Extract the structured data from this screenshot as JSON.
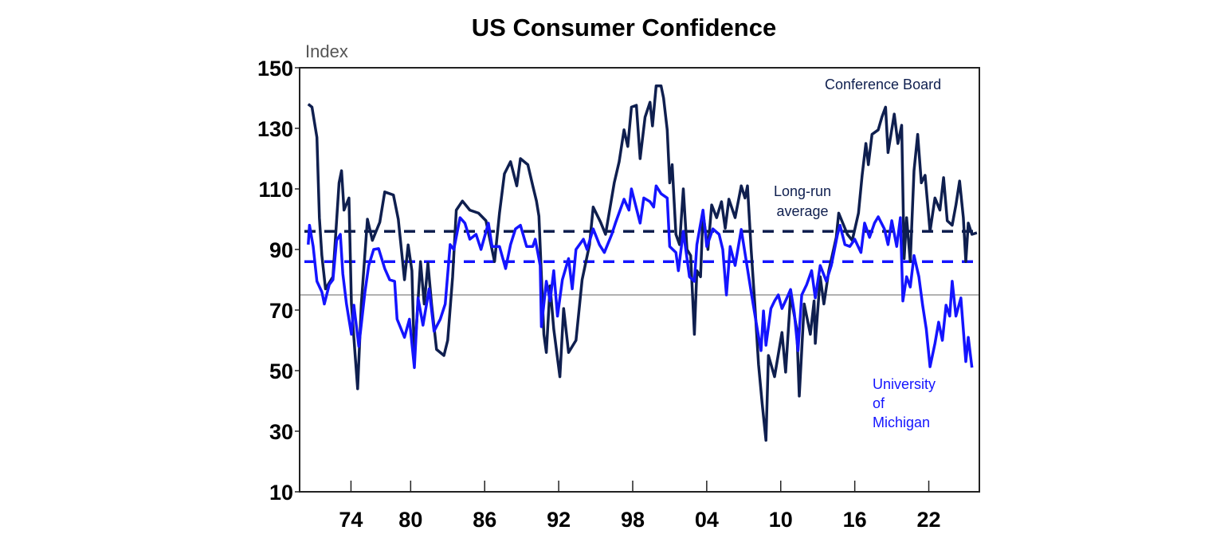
{
  "chart_data": {
    "type": "line",
    "title": "US Consumer Confidence",
    "ylabel": "Index",
    "ylim": [
      10,
      150
    ],
    "xlim": [
      1971,
      2026.1
    ],
    "yticks": [
      10,
      30,
      50,
      70,
      90,
      110,
      130,
      150
    ],
    "xticks": [
      {
        "year": 1974,
        "label": "74"
      },
      {
        "year": 1980,
        "label": "80"
      },
      {
        "year": 1986,
        "label": "86"
      },
      {
        "year": 1992,
        "label": "92"
      },
      {
        "year": 1998,
        "label": "98"
      },
      {
        "year": 2004,
        "label": "04"
      },
      {
        "year": 2010,
        "label": "10"
      },
      {
        "year": 2016,
        "label": "16"
      },
      {
        "year": 2022,
        "label": "22"
      }
    ],
    "grid": false,
    "colors": {
      "conference_board": "#0f1f4f",
      "michigan": "#1414ff",
      "reference_line": "#999999"
    },
    "series": [
      {
        "name": "Conference Board",
        "label_lines": [
          "Conference Board"
        ],
        "long_run_average": 96,
        "points": [
          [
            1971.7,
            138
          ],
          [
            1972.0,
            137
          ],
          [
            1972.4,
            127
          ],
          [
            1972.6,
            100.5
          ],
          [
            1972.8,
            88
          ],
          [
            1973.1,
            77
          ],
          [
            1973.7,
            81
          ],
          [
            1974.2,
            112
          ],
          [
            1974.4,
            116
          ],
          [
            1974.6,
            103
          ],
          [
            1975.0,
            107
          ],
          [
            1975.2,
            72
          ],
          [
            1975.5,
            55
          ],
          [
            1975.7,
            44
          ],
          [
            1976.0,
            72
          ],
          [
            1976.5,
            100
          ],
          [
            1976.9,
            93
          ],
          [
            1977.5,
            99
          ],
          [
            1977.9,
            109
          ],
          [
            1978.6,
            108
          ],
          [
            1979.0,
            100
          ],
          [
            1979.5,
            80
          ],
          [
            1979.8,
            91.5
          ],
          [
            1980.1,
            83
          ],
          [
            1980.3,
            54
          ],
          [
            1980.8,
            86
          ],
          [
            1981.1,
            72
          ],
          [
            1981.4,
            85.5
          ],
          [
            1981.7,
            72
          ],
          [
            1982.1,
            57
          ],
          [
            1982.7,
            55
          ],
          [
            1983.0,
            60
          ],
          [
            1983.4,
            81
          ],
          [
            1983.7,
            103
          ],
          [
            1984.2,
            106
          ],
          [
            1984.8,
            103
          ],
          [
            1985.5,
            102
          ],
          [
            1986.1,
            99.5
          ],
          [
            1986.8,
            86
          ],
          [
            1987.2,
            102
          ],
          [
            1987.6,
            115
          ],
          [
            1988.1,
            119
          ],
          [
            1988.6,
            111
          ],
          [
            1988.9,
            120
          ],
          [
            1989.5,
            118
          ],
          [
            1989.9,
            111
          ],
          [
            1990.2,
            106
          ],
          [
            1990.4,
            101
          ],
          [
            1990.8,
            62
          ],
          [
            1991.0,
            56
          ],
          [
            1991.3,
            78
          ],
          [
            1991.6,
            63.7
          ],
          [
            1992.1,
            48
          ],
          [
            1992.4,
            70.5
          ],
          [
            1992.8,
            56
          ],
          [
            1993.4,
            60
          ],
          [
            1993.9,
            80
          ],
          [
            1994.5,
            91.6
          ],
          [
            1994.8,
            104
          ],
          [
            1995.4,
            99
          ],
          [
            1995.8,
            95
          ],
          [
            1996.5,
            112
          ],
          [
            1996.9,
            119
          ],
          [
            1997.3,
            129.5
          ],
          [
            1997.6,
            124
          ],
          [
            1997.9,
            137
          ],
          [
            1998.3,
            137.6
          ],
          [
            1998.6,
            120
          ],
          [
            1999.0,
            133.7
          ],
          [
            1999.4,
            138.6
          ],
          [
            1999.6,
            130.8
          ],
          [
            1999.9,
            144
          ],
          [
            2000.3,
            144
          ],
          [
            2000.5,
            140
          ],
          [
            2000.8,
            129.5
          ],
          [
            2001.0,
            112
          ],
          [
            2001.2,
            118
          ],
          [
            2001.5,
            95
          ],
          [
            2001.8,
            91.6
          ],
          [
            2002.1,
            110
          ],
          [
            2002.4,
            90
          ],
          [
            2002.7,
            88
          ],
          [
            2003.0,
            62
          ],
          [
            2003.2,
            83
          ],
          [
            2003.5,
            81
          ],
          [
            2003.7,
            102
          ],
          [
            2004.1,
            90
          ],
          [
            2004.4,
            104.7
          ],
          [
            2004.8,
            100.5
          ],
          [
            2005.2,
            105.8
          ],
          [
            2005.5,
            97
          ],
          [
            2005.8,
            106.6
          ],
          [
            2006.3,
            100.5
          ],
          [
            2006.8,
            111
          ],
          [
            2007.1,
            107
          ],
          [
            2007.3,
            111
          ],
          [
            2007.6,
            90
          ],
          [
            2007.9,
            72
          ],
          [
            2008.2,
            52
          ],
          [
            2008.5,
            39
          ],
          [
            2008.8,
            27
          ],
          [
            2009.0,
            55
          ],
          [
            2009.5,
            48
          ],
          [
            2010.1,
            62.6
          ],
          [
            2010.4,
            49.5
          ],
          [
            2010.8,
            75
          ],
          [
            2011.3,
            63.7
          ],
          [
            2011.5,
            41.6
          ],
          [
            2011.9,
            72
          ],
          [
            2012.4,
            62
          ],
          [
            2012.7,
            73
          ],
          [
            2012.8,
            59
          ],
          [
            2013.2,
            81
          ],
          [
            2013.5,
            72
          ],
          [
            2013.9,
            83
          ],
          [
            2014.5,
            94
          ],
          [
            2014.7,
            102
          ],
          [
            2015.4,
            95
          ],
          [
            2015.8,
            93
          ],
          [
            2016.3,
            102
          ],
          [
            2016.6,
            114.5
          ],
          [
            2016.9,
            125
          ],
          [
            2017.1,
            118
          ],
          [
            2017.4,
            128
          ],
          [
            2017.9,
            129.5
          ],
          [
            2018.2,
            133.7
          ],
          [
            2018.5,
            137
          ],
          [
            2018.7,
            122
          ],
          [
            2019.2,
            134.7
          ],
          [
            2019.5,
            125
          ],
          [
            2019.8,
            131
          ],
          [
            2020.0,
            87
          ],
          [
            2020.2,
            100.5
          ],
          [
            2020.5,
            86
          ],
          [
            2020.8,
            116
          ],
          [
            2021.1,
            128
          ],
          [
            2021.4,
            112
          ],
          [
            2021.7,
            114.5
          ],
          [
            2022.1,
            96
          ],
          [
            2022.5,
            107
          ],
          [
            2022.9,
            103
          ],
          [
            2023.2,
            113.7
          ],
          [
            2023.5,
            99.5
          ],
          [
            2023.9,
            98
          ],
          [
            2024.2,
            104.7
          ],
          [
            2024.5,
            112.6
          ],
          [
            2024.8,
            100.5
          ],
          [
            2025.0,
            86
          ],
          [
            2025.2,
            98.7
          ],
          [
            2025.5,
            95
          ],
          [
            2025.9,
            95.5
          ]
        ]
      },
      {
        "name": "University of Michigan",
        "label_lines": [
          "University",
          "of",
          "Michigan"
        ],
        "long_run_average": 86,
        "points": [
          [
            1971.7,
            91.6
          ],
          [
            1971.8,
            98
          ],
          [
            1972.1,
            91
          ],
          [
            1972.4,
            79.5
          ],
          [
            1972.8,
            76
          ],
          [
            1973.0,
            72
          ],
          [
            1973.4,
            78.4
          ],
          [
            1973.7,
            80
          ],
          [
            1974.0,
            93
          ],
          [
            1974.3,
            95
          ],
          [
            1974.5,
            82
          ],
          [
            1974.8,
            72
          ],
          [
            1975.2,
            62
          ],
          [
            1975.4,
            71.6
          ],
          [
            1975.8,
            58
          ],
          [
            1976.3,
            76
          ],
          [
            1976.6,
            84.7
          ],
          [
            1977.0,
            90
          ],
          [
            1977.4,
            90.3
          ],
          [
            1977.9,
            83.7
          ],
          [
            1978.3,
            80
          ],
          [
            1978.7,
            79.5
          ],
          [
            1978.9,
            67
          ],
          [
            1979.5,
            61
          ],
          [
            1979.9,
            67
          ],
          [
            1980.3,
            51
          ],
          [
            1980.6,
            74
          ],
          [
            1981.0,
            65
          ],
          [
            1981.5,
            77
          ],
          [
            1981.9,
            63
          ],
          [
            1982.4,
            67
          ],
          [
            1982.8,
            72
          ],
          [
            1983.2,
            91.6
          ],
          [
            1983.5,
            90
          ],
          [
            1984.0,
            100.5
          ],
          [
            1984.4,
            98.7
          ],
          [
            1984.8,
            93.4
          ],
          [
            1985.3,
            95
          ],
          [
            1985.7,
            90
          ],
          [
            1986.3,
            98.7
          ],
          [
            1986.6,
            91
          ],
          [
            1987.2,
            91
          ],
          [
            1987.7,
            83.7
          ],
          [
            1988.1,
            91.6
          ],
          [
            1988.5,
            96.8
          ],
          [
            1988.9,
            98
          ],
          [
            1989.4,
            91
          ],
          [
            1989.9,
            91
          ],
          [
            1990.1,
            93.4
          ],
          [
            1990.5,
            84.7
          ],
          [
            1990.6,
            64.5
          ],
          [
            1991.0,
            79.5
          ],
          [
            1991.3,
            73
          ],
          [
            1991.6,
            83
          ],
          [
            1991.9,
            68
          ],
          [
            1992.3,
            80
          ],
          [
            1992.8,
            87
          ],
          [
            1993.1,
            77
          ],
          [
            1993.4,
            90
          ],
          [
            1994.0,
            93.4
          ],
          [
            1994.3,
            90
          ],
          [
            1994.8,
            96.8
          ],
          [
            1995.3,
            91.6
          ],
          [
            1995.7,
            89
          ],
          [
            1996.3,
            95
          ],
          [
            1996.6,
            98.7
          ],
          [
            1997.3,
            106.6
          ],
          [
            1997.7,
            103
          ],
          [
            1997.9,
            110
          ],
          [
            1998.6,
            98.7
          ],
          [
            1998.9,
            107
          ],
          [
            1999.4,
            105.8
          ],
          [
            1999.7,
            104
          ],
          [
            1999.9,
            111
          ],
          [
            2000.3,
            108.4
          ],
          [
            2000.8,
            107
          ],
          [
            2001.0,
            91
          ],
          [
            2001.5,
            89
          ],
          [
            2001.7,
            83
          ],
          [
            2002.1,
            96
          ],
          [
            2002.6,
            81
          ],
          [
            2003.0,
            79.5
          ],
          [
            2003.2,
            91.6
          ],
          [
            2003.7,
            103
          ],
          [
            2004.0,
            91
          ],
          [
            2004.5,
            96.8
          ],
          [
            2005.0,
            95
          ],
          [
            2005.3,
            90
          ],
          [
            2005.6,
            75
          ],
          [
            2005.9,
            91
          ],
          [
            2006.3,
            84.7
          ],
          [
            2006.8,
            96.6
          ],
          [
            2007.2,
            86.3
          ],
          [
            2007.6,
            76
          ],
          [
            2008.1,
            63.7
          ],
          [
            2008.4,
            56.6
          ],
          [
            2008.6,
            69.7
          ],
          [
            2008.8,
            58.4
          ],
          [
            2009.2,
            70.5
          ],
          [
            2009.5,
            73
          ],
          [
            2009.8,
            75
          ],
          [
            2010.1,
            70.5
          ],
          [
            2010.5,
            74
          ],
          [
            2010.8,
            76.8
          ],
          [
            2011.1,
            69
          ],
          [
            2011.4,
            56.6
          ],
          [
            2011.7,
            75
          ],
          [
            2012.1,
            78.4
          ],
          [
            2012.5,
            83
          ],
          [
            2012.8,
            74
          ],
          [
            2013.2,
            84.7
          ],
          [
            2013.7,
            79.5
          ],
          [
            2014.1,
            84.7
          ],
          [
            2014.6,
            95
          ],
          [
            2014.8,
            98
          ],
          [
            2015.2,
            91.6
          ],
          [
            2015.6,
            91
          ],
          [
            2016.0,
            93.4
          ],
          [
            2016.5,
            89
          ],
          [
            2016.8,
            98.7
          ],
          [
            2017.2,
            94
          ],
          [
            2017.6,
            98.7
          ],
          [
            2017.9,
            100.8
          ],
          [
            2018.4,
            96.8
          ],
          [
            2018.7,
            91.6
          ],
          [
            2019.0,
            99.5
          ],
          [
            2019.4,
            91
          ],
          [
            2019.7,
            100.5
          ],
          [
            2019.9,
            73
          ],
          [
            2020.2,
            81
          ],
          [
            2020.5,
            77.6
          ],
          [
            2020.8,
            88
          ],
          [
            2021.2,
            81
          ],
          [
            2021.5,
            71.6
          ],
          [
            2021.8,
            63.7
          ],
          [
            2022.1,
            51.3
          ],
          [
            2022.5,
            59
          ],
          [
            2022.8,
            66
          ],
          [
            2023.1,
            60
          ],
          [
            2023.4,
            71.6
          ],
          [
            2023.7,
            68
          ],
          [
            2023.9,
            79.5
          ],
          [
            2024.2,
            68
          ],
          [
            2024.6,
            74
          ],
          [
            2025.0,
            53
          ],
          [
            2025.2,
            61
          ],
          [
            2025.5,
            51
          ]
        ]
      }
    ],
    "reference_line": 75,
    "annotations": {
      "long_run_average": [
        "Long-run",
        "average"
      ]
    }
  }
}
